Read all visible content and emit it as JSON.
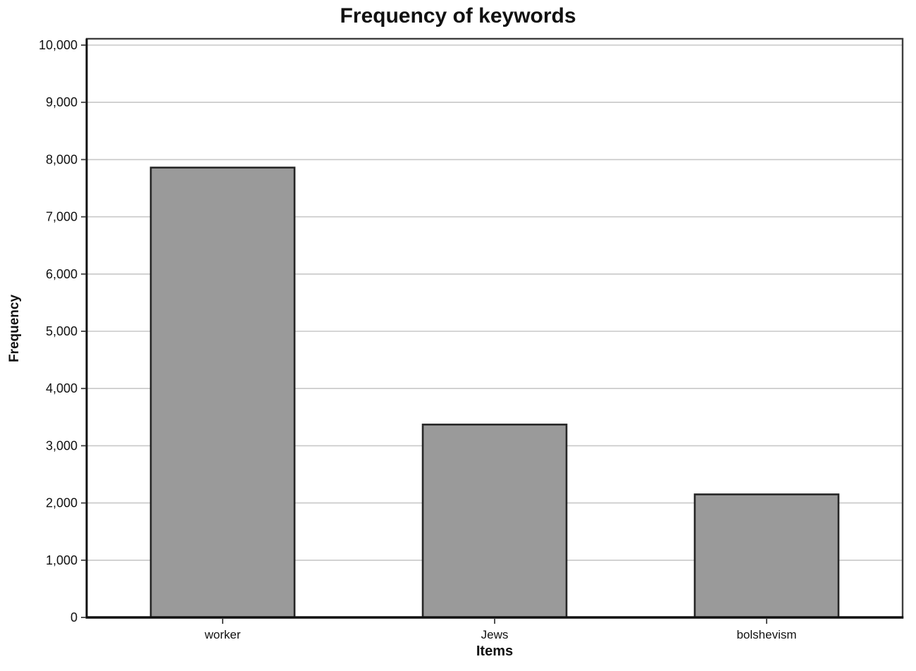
{
  "chart_data": {
    "type": "bar",
    "title": "Frequency of keywords",
    "xlabel": "Items",
    "ylabel": "Frequency",
    "categories": [
      "worker",
      "Jews",
      "bolshevism"
    ],
    "values": [
      7860,
      3370,
      2150
    ],
    "ylim": [
      0,
      10000
    ],
    "ytick_step": 1000,
    "ytick_labels": [
      "0",
      "1,000",
      "2,000",
      "3,000",
      "4,000",
      "5,000",
      "6,000",
      "7,000",
      "8,000",
      "9,000",
      "10,000"
    ],
    "grid": "horizontal",
    "legend_position": "none",
    "colors": {
      "bar_fill": "#9a9a9a",
      "bar_stroke": "#262626",
      "gridline": "#c8c8c8",
      "frame": "#3f3f3f",
      "axis_line": "#111111",
      "text": "#111111",
      "background": "#ffffff"
    }
  }
}
